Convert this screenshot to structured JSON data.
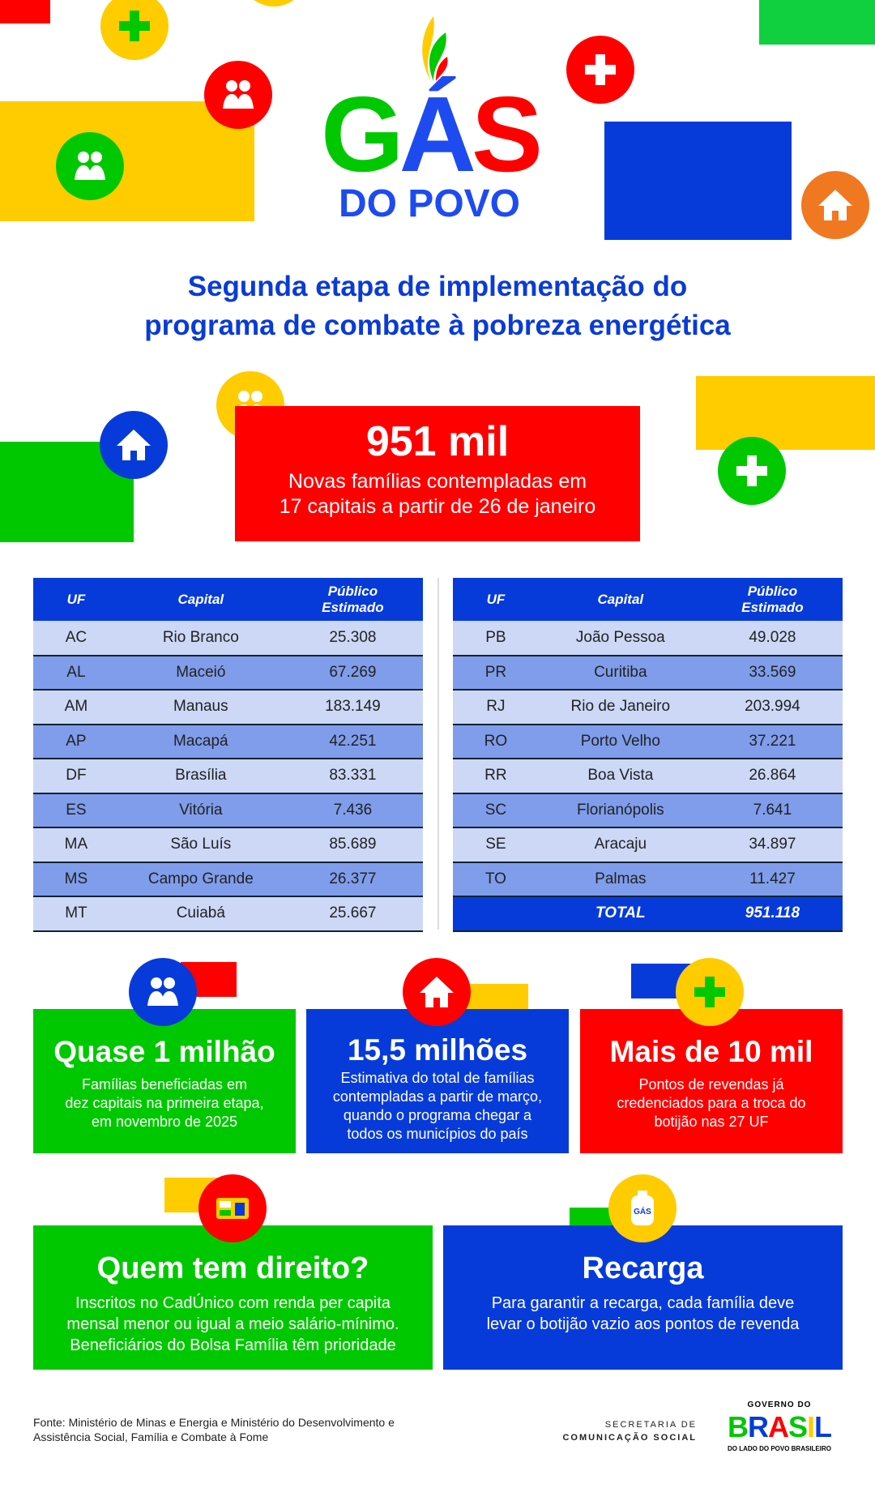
{
  "logo": {
    "line1": "GÁS",
    "line2": "DO POVO"
  },
  "headline": {
    "line1": "Segunda etapa de implementação do",
    "line2": "programa de combate à pobreza energética"
  },
  "highlight": {
    "value": "951 mil",
    "line1": "Novas famílias contempladas em",
    "line2": "17 capitais a partir de 26 de janeiro"
  },
  "table": {
    "headers": {
      "uf": "UF",
      "capital": "Capital",
      "publico1": "Público",
      "publico2": "Estimado"
    },
    "left": [
      {
        "uf": "AC",
        "capital": "Rio Branco",
        "value": "25.308"
      },
      {
        "uf": "AL",
        "capital": "Maceió",
        "value": "67.269"
      },
      {
        "uf": "AM",
        "capital": "Manaus",
        "value": "183.149"
      },
      {
        "uf": "AP",
        "capital": "Macapá",
        "value": "42.251"
      },
      {
        "uf": "DF",
        "capital": "Brasília",
        "value": "83.331"
      },
      {
        "uf": "ES",
        "capital": "Vitória",
        "value": "7.436"
      },
      {
        "uf": "MA",
        "capital": "São Luís",
        "value": "85.689"
      },
      {
        "uf": "MS",
        "capital": "Campo Grande",
        "value": "26.377"
      },
      {
        "uf": "MT",
        "capital": "Cuiabá",
        "value": "25.667"
      }
    ],
    "right": [
      {
        "uf": "PB",
        "capital": "João Pessoa",
        "value": "49.028"
      },
      {
        "uf": "PR",
        "capital": "Curitiba",
        "value": "33.569"
      },
      {
        "uf": "RJ",
        "capital": "Rio de Janeiro",
        "value": "203.994"
      },
      {
        "uf": "RO",
        "capital": "Porto Velho",
        "value": "37.221"
      },
      {
        "uf": "RR",
        "capital": "Boa Vista",
        "value": "26.864"
      },
      {
        "uf": "SC",
        "capital": "Florianópolis",
        "value": "7.641"
      },
      {
        "uf": "SE",
        "capital": "Aracaju",
        "value": "34.897"
      },
      {
        "uf": "TO",
        "capital": "Palmas",
        "value": "11.427"
      }
    ],
    "total": {
      "label": "TOTAL",
      "value": "951.118"
    }
  },
  "cards": [
    {
      "title": "Quase 1 milhão",
      "text": [
        "Famílias beneficiadas em",
        "dez capitais na primeira etapa,",
        "em novembro de 2025"
      ]
    },
    {
      "title": "15,5 milhões",
      "text": [
        "Estimativa do total de famílias",
        "contempladas a partir de março,",
        "quando o programa chegar a",
        "todos os municípios do país"
      ]
    },
    {
      "title": "Mais de 10 mil",
      "text": [
        "Pontos de revendas já",
        "credenciados para a troca do",
        "botijão nas 27 UF"
      ]
    }
  ],
  "bottom_cards": [
    {
      "title": "Quem tem direito?",
      "text": [
        "Inscritos no CadÚnico com renda per capita",
        "mensal menor ou igual a meio salário-mínimo.",
        "Beneficiários do Bolsa Família têm prioridade"
      ]
    },
    {
      "title": "Recarga",
      "text": [
        "Para garantir a recarga, cada família deve",
        "levar o botijão vazio aos pontos de revenda"
      ]
    }
  ],
  "gas_label": "GÁS",
  "footer": {
    "source1": "Fonte: Ministério de Minas e Energia e Ministério do Desenvolvimento e",
    "source2": "Assistência Social, Família e Combate à Fome",
    "secom1": "SECRETARIA DE",
    "secom2": "COMUNICAÇÃO SOCIAL",
    "gov_top": "GOVERNO DO",
    "gov_brasil": "BRASIL",
    "gov_bottom": "DO LADO DO POVO BRASILEIRO"
  },
  "colors": {
    "blue": "#073bd9",
    "red": "#ff0000",
    "green": "#00c800",
    "yellow": "#ffcc00",
    "orange": "#f07820"
  }
}
